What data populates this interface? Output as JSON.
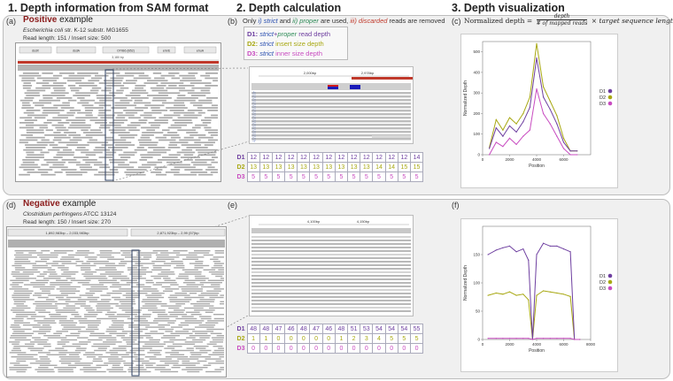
{
  "headers": {
    "col1": "1. Depth information from SAM format",
    "col2": "2. Depth calculation",
    "col3": "3. Depth visualization"
  },
  "labels": {
    "a": "(a)",
    "b": "(b)",
    "c": "(c)",
    "d": "(d)",
    "e": "(e)",
    "f": "(f)"
  },
  "positive": {
    "word": "Positive",
    "rest": " example",
    "organism": "Escherichia coli",
    "strain": " str. K-12 substr. MG1655",
    "reads": "Read length: 151 / Insert size: 500",
    "genes": [
      "dsdX",
      "dsdA",
      "OYIB6 (B52)",
      "emrE",
      "ehuA"
    ],
    "scale": "3,180 bp",
    "coords": [
      "2,000bp",
      "2,978bp"
    ]
  },
  "negative": {
    "word": "Negative",
    "rest": " example",
    "organism": "Clostridium perfringens",
    "strain": " ATCC 13124",
    "reads": "Read length: 150 / Insert size: 270",
    "regions": [
      "1,892,983bp – 2,033,983bp",
      "2,871,923bp – 2,99 (57)bp"
    ],
    "coords": [
      "4,100bp",
      "4,150bp"
    ]
  },
  "legend_b": {
    "only": "Only ",
    "i": "i) strict",
    "and": " and ",
    "ii": "ii) proper",
    "used": " are used, ",
    "iii": "iii) discarded",
    "removed": " reads are removed",
    "d1_key": "D1:",
    "d1_a": "strict",
    "d1_plus": "+",
    "d1_b": "proper",
    "d1_c": " read depth",
    "d2_key": "D2:",
    "d2_a": "strict",
    "d2_b": " insert size depth",
    "d3_key": "D3:",
    "d3_a": "strict",
    "d3_b": " inner size depth"
  },
  "formula": {
    "lhs": "Normalized depth =",
    "num": "depth",
    "den": "# of mapped reads",
    "rhs": "× target sequence length"
  },
  "table_top": {
    "D1": [
      "12",
      "12",
      "12",
      "12",
      "12",
      "12",
      "12",
      "12",
      "12",
      "12",
      "12",
      "12",
      "12",
      "14"
    ],
    "D2": [
      "13",
      "13",
      "13",
      "13",
      "13",
      "13",
      "13",
      "13",
      "13",
      "13",
      "14",
      "14",
      "15",
      "15"
    ],
    "D3": [
      "5",
      "5",
      "5",
      "5",
      "5",
      "5",
      "5",
      "5",
      "5",
      "5",
      "5",
      "5",
      "5",
      "5"
    ]
  },
  "table_bottom": {
    "D1": [
      "48",
      "48",
      "47",
      "46",
      "48",
      "47",
      "46",
      "48",
      "51",
      "53",
      "54",
      "54",
      "54",
      "55"
    ],
    "D2": [
      "1",
      "1",
      "0",
      "0",
      "0",
      "0",
      "0",
      "1",
      "2",
      "3",
      "4",
      "5",
      "5",
      "5"
    ],
    "D3": [
      "0",
      "0",
      "0",
      "0",
      "0",
      "0",
      "0",
      "0",
      "0",
      "0",
      "0",
      "0",
      "0",
      "0"
    ]
  },
  "row_labels": [
    "D1",
    "D2",
    "D3"
  ],
  "colors": {
    "d1": "#6e3fa0",
    "d2": "#a8a812",
    "d3": "#c84bc0",
    "red": "#c0392b",
    "strict": "#2a4fb0",
    "proper": "#2e8b57"
  },
  "chart_data": [
    {
      "type": "line",
      "title": "",
      "xlabel": "Position",
      "ylabel": "Normalized Depth",
      "xlim": [
        0,
        8000
      ],
      "ylim": [
        0,
        550
      ],
      "xticks": [
        "0",
        "2000",
        "4000",
        "6000"
      ],
      "yticks": [
        "0",
        "100",
        "200",
        "300",
        "400",
        "500"
      ],
      "legend": [
        "D1",
        "D2",
        "D3"
      ],
      "legend_position": "right",
      "x": [
        500,
        1000,
        1500,
        2000,
        2500,
        3000,
        3500,
        4000,
        4500,
        5000,
        5500,
        6000,
        6500,
        7000
      ],
      "series": [
        {
          "name": "D1",
          "values": [
            30,
            130,
            90,
            140,
            110,
            160,
            230,
            470,
            280,
            220,
            150,
            60,
            18,
            18
          ]
        },
        {
          "name": "D2",
          "values": [
            35,
            170,
            120,
            180,
            150,
            200,
            280,
            540,
            330,
            260,
            190,
            80,
            18,
            18
          ]
        },
        {
          "name": "D3",
          "values": [
            0,
            60,
            40,
            80,
            50,
            90,
            120,
            320,
            200,
            150,
            90,
            30,
            0,
            0
          ]
        }
      ]
    },
    {
      "type": "line",
      "title": "",
      "xlabel": "Position",
      "ylabel": "Normalized Depth",
      "xlim": [
        0,
        8000
      ],
      "ylim": [
        0,
        200
      ],
      "xticks": [
        "0",
        "2000",
        "4000",
        "6000",
        "8000"
      ],
      "yticks": [
        "0",
        "50",
        "100",
        "150"
      ],
      "legend": [
        "D1",
        "D2",
        "D3"
      ],
      "legend_position": "right",
      "x": [
        400,
        1000,
        1500,
        2000,
        2500,
        3000,
        3400,
        3700,
        4000,
        4500,
        5000,
        5500,
        6000,
        6500,
        6800,
        7200
      ],
      "series": [
        {
          "name": "D1",
          "values": [
            150,
            158,
            162,
            165,
            155,
            160,
            140,
            0,
            150,
            170,
            165,
            165,
            160,
            155,
            0,
            0
          ]
        },
        {
          "name": "D2",
          "values": [
            78,
            82,
            80,
            84,
            78,
            80,
            70,
            0,
            78,
            86,
            84,
            82,
            80,
            76,
            0,
            0
          ]
        },
        {
          "name": "D3",
          "values": [
            2,
            2,
            2,
            2,
            2,
            2,
            2,
            0,
            2,
            2,
            2,
            2,
            2,
            2,
            0,
            0
          ]
        }
      ]
    }
  ]
}
